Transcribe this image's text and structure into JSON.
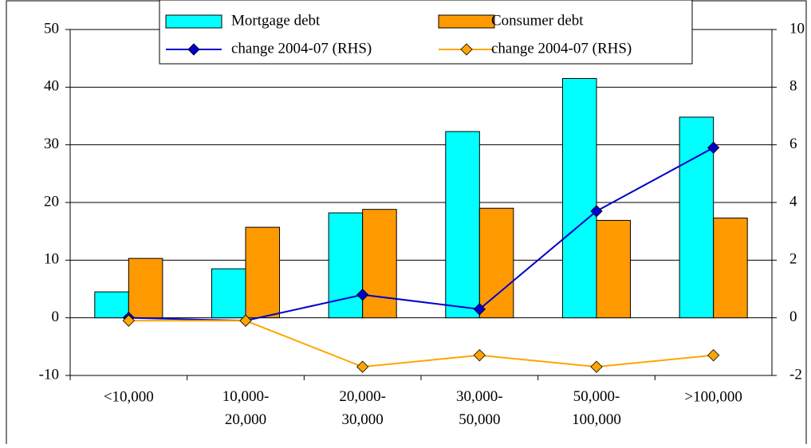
{
  "chart_data": {
    "type": "bar",
    "categories": [
      "<10,000",
      "10,000-\n20,000",
      "20,000-\n30,000",
      "30,000-\n50,000",
      "50,000-\n100,000",
      ">100,000"
    ],
    "series": [
      {
        "name": "Mortgage debt",
        "color": "#00ffff",
        "values": [
          4.5,
          8.5,
          18.2,
          32.3,
          41.5,
          34.8
        ]
      },
      {
        "name": "Consumer debt",
        "color": "#ff9900",
        "values": [
          10.3,
          15.7,
          18.8,
          19.0,
          16.9,
          17.3
        ]
      },
      {
        "name": "change 2004-07 (RHS)",
        "color": "#0000cc",
        "type": "line",
        "axis": "y2",
        "values": [
          0,
          -0.1,
          0.8,
          0.3,
          3.7,
          5.9
        ]
      },
      {
        "name": "change 2004-07 (RHS)",
        "color": "#ffa500",
        "type": "line",
        "axis": "y2",
        "values": [
          -0.1,
          -0.1,
          -1.7,
          -1.3,
          -1.7,
          -1.3
        ]
      }
    ],
    "ylim": [
      -10,
      50
    ],
    "yticks": [
      -10,
      0,
      10,
      20,
      30,
      40,
      50
    ],
    "y2lim": [
      -2,
      10
    ],
    "y2ticks": [
      -2,
      0,
      2,
      4,
      6,
      8,
      10
    ],
    "grid": true,
    "legend": "top"
  }
}
